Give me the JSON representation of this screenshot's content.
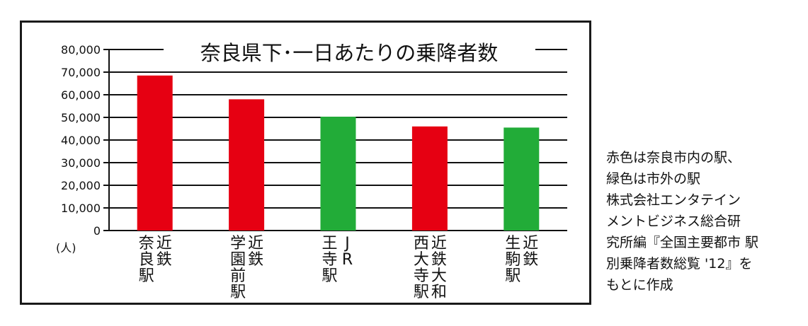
{
  "chart_data": {
    "type": "bar",
    "title": "奈良県下･一日あたりの乗降者数",
    "ylabel": "(人)",
    "ylim": [
      0,
      80000
    ],
    "yticks": [
      0,
      10000,
      20000,
      30000,
      40000,
      50000,
      60000,
      70000,
      80000
    ],
    "ytick_labels": [
      "0",
      "10,000",
      "20,000",
      "30,000",
      "40,000",
      "50,000",
      "60,000",
      "70,000",
      "80,000"
    ],
    "grid": true,
    "categories": [
      {
        "operator": "近鉄",
        "station": "奈良駅"
      },
      {
        "operator": "近鉄",
        "station": "学園前駅"
      },
      {
        "operator": "JR",
        "station": "王寺駅"
      },
      {
        "operator": "近鉄大和",
        "station": "西大寺駅"
      },
      {
        "operator": "近鉄",
        "station": "生駒駅"
      }
    ],
    "values": [
      68500,
      58000,
      50300,
      46000,
      45500
    ],
    "bar_colors": [
      "#e60012",
      "#e60012",
      "#22ac38",
      "#e60012",
      "#22ac38"
    ]
  },
  "note": {
    "lines": [
      "赤色は奈良市内の駅、",
      "緑色は市外の駅",
      "株式会社エンタテイン",
      "メントビジネス総合研",
      "究所編『全国主要都市 駅",
      "別乗降者数総覧 '12』を",
      "もとに作成"
    ]
  }
}
